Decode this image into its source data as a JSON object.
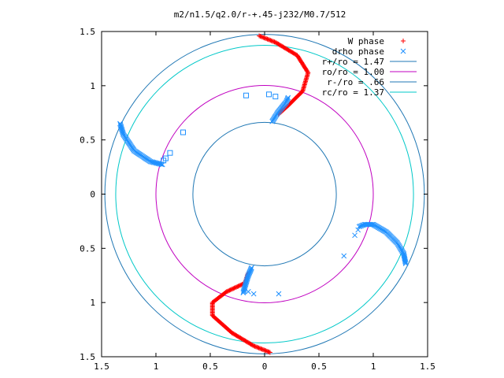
{
  "chart_data": {
    "type": "scatter",
    "title": "m2/n1.5/q2.0/r-+.45-j232/M0.7/512",
    "xlim": [
      -1.5,
      1.5
    ],
    "ylim": [
      -1.5,
      1.5
    ],
    "xticks": [
      "1.5",
      "1",
      "0.5",
      "0",
      "0.5",
      "1",
      "1.5"
    ],
    "yticks": [
      "1.5",
      "1",
      "0.5",
      "0",
      "0.5",
      "1",
      "1.5"
    ],
    "grid": false,
    "legend_position": "top-right",
    "series": [
      {
        "name": "W phase",
        "kind": "marker",
        "marker": "plus",
        "color": "#ff0000"
      },
      {
        "name": "drho phase",
        "kind": "marker",
        "marker": "cross",
        "color": "#1e90ff"
      },
      {
        "name": "r+/ro = 1.47",
        "kind": "circle",
        "radius": 1.47,
        "color": "#1f77b4"
      },
      {
        "name": "ro/ro = 1.00",
        "kind": "circle",
        "radius": 1.0,
        "color": "#c000c0"
      },
      {
        "name": "r-/ro = .66",
        "kind": "circle",
        "radius": 0.66,
        "color": "#1f77b4"
      },
      {
        "name": "rc/ro = 1.37",
        "kind": "circle",
        "radius": 1.37,
        "color": "#00c8c8"
      }
    ],
    "curves": [
      {
        "series": "W phase",
        "points": [
          [
            -0.05,
            1.46
          ],
          [
            0.1,
            1.4
          ],
          [
            0.3,
            1.28
          ],
          [
            0.4,
            1.12
          ],
          [
            0.35,
            0.95
          ],
          [
            0.22,
            0.82
          ],
          [
            0.12,
            0.73
          ]
        ]
      },
      {
        "series": "W phase",
        "points": [
          [
            0.05,
            -1.46
          ],
          [
            -0.1,
            -1.4
          ],
          [
            -0.3,
            -1.28
          ],
          [
            -0.48,
            -1.12
          ],
          [
            -0.48,
            -1.0
          ],
          [
            -0.35,
            -0.9
          ],
          [
            -0.18,
            -0.82
          ],
          [
            -0.15,
            -0.72
          ]
        ]
      },
      {
        "series": "drho phase",
        "points": [
          [
            0.07,
            0.67
          ],
          [
            0.12,
            0.75
          ],
          [
            0.2,
            0.85
          ],
          [
            0.22,
            0.9
          ]
        ]
      },
      {
        "series": "drho phase",
        "points": [
          [
            -1.33,
            0.65
          ],
          [
            -1.3,
            0.55
          ],
          [
            -1.2,
            0.4
          ],
          [
            -1.05,
            0.3
          ],
          [
            -0.93,
            0.27
          ]
        ]
      },
      {
        "series": "drho phase",
        "points": [
          [
            0.87,
            -0.3
          ],
          [
            0.92,
            -0.28
          ],
          [
            1.0,
            -0.28
          ],
          [
            1.12,
            -0.35
          ],
          [
            1.22,
            -0.45
          ],
          [
            1.28,
            -0.55
          ],
          [
            1.3,
            -0.65
          ]
        ]
      },
      {
        "series": "drho phase",
        "points": [
          [
            -0.12,
            -0.68
          ],
          [
            -0.15,
            -0.75
          ],
          [
            -0.18,
            -0.85
          ],
          [
            -0.2,
            -0.92
          ]
        ]
      }
    ],
    "scatter_points": [
      {
        "series": "drho phase",
        "marker": "square",
        "points": [
          [
            -0.17,
            0.91
          ],
          [
            0.04,
            0.92
          ],
          [
            0.1,
            0.9
          ],
          [
            -0.75,
            0.57
          ],
          [
            -0.87,
            0.38
          ],
          [
            -0.91,
            0.33
          ],
          [
            -0.93,
            0.31
          ]
        ]
      },
      {
        "series": "drho phase",
        "marker": "cross",
        "points": [
          [
            0.73,
            -0.57
          ],
          [
            0.83,
            -0.38
          ],
          [
            0.86,
            -0.33
          ],
          [
            0.13,
            -0.92
          ],
          [
            -0.1,
            -0.92
          ],
          [
            -0.15,
            -0.9
          ]
        ]
      }
    ]
  }
}
